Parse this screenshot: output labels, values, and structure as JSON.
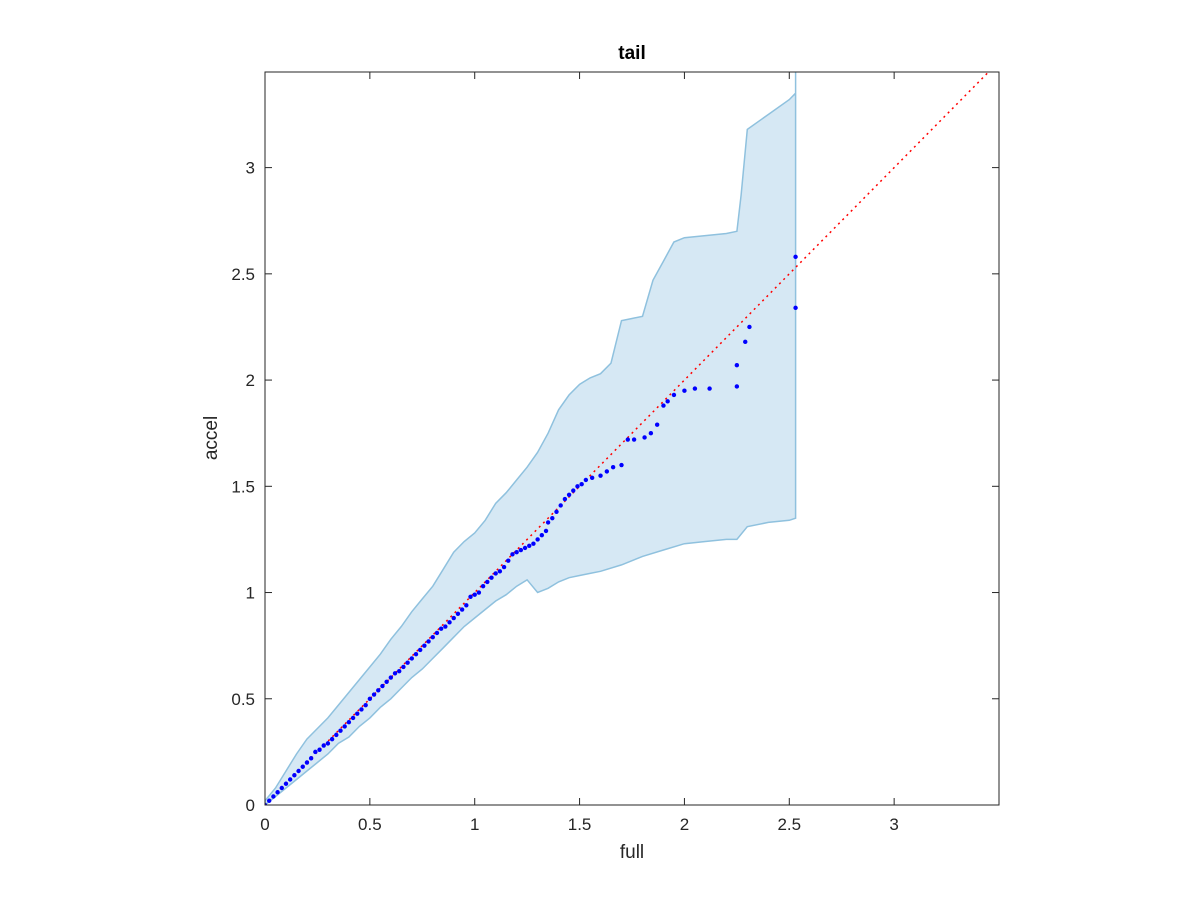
{
  "chart_data": {
    "type": "scatter",
    "title": "tail",
    "xlabel": "full",
    "ylabel": "accel",
    "xlim": [
      0,
      3.5
    ],
    "ylim": [
      0,
      3.45
    ],
    "xticks": [
      0,
      0.5,
      1,
      1.5,
      2,
      2.5,
      3
    ],
    "yticks": [
      0,
      0.5,
      1,
      1.5,
      2,
      2.5,
      3
    ],
    "xtick_labels": [
      "0",
      "0.5",
      "1",
      "1.5",
      "2",
      "2.5",
      "3"
    ],
    "ytick_labels": [
      "0",
      "0.5",
      "1",
      "1.5",
      "2",
      "2.5",
      "3"
    ],
    "grid": false,
    "colors": {
      "points": "#0000ff",
      "reference_line": "#ff0000",
      "band_fill": "#d6e8f4",
      "band_edge": "#8fc1de",
      "axes": "#262626"
    },
    "reference_line": {
      "x": [
        0,
        3.5
      ],
      "y": [
        0,
        3.5
      ],
      "style": "dotted"
    },
    "band": {
      "upper": [
        [
          0,
          0.02
        ],
        [
          0.05,
          0.08
        ],
        [
          0.1,
          0.16
        ],
        [
          0.15,
          0.24
        ],
        [
          0.2,
          0.31
        ],
        [
          0.25,
          0.36
        ],
        [
          0.3,
          0.41
        ],
        [
          0.35,
          0.47
        ],
        [
          0.4,
          0.53
        ],
        [
          0.45,
          0.59
        ],
        [
          0.5,
          0.65
        ],
        [
          0.55,
          0.71
        ],
        [
          0.6,
          0.78
        ],
        [
          0.65,
          0.84
        ],
        [
          0.7,
          0.91
        ],
        [
          0.75,
          0.97
        ],
        [
          0.8,
          1.03
        ],
        [
          0.85,
          1.11
        ],
        [
          0.9,
          1.19
        ],
        [
          0.95,
          1.24
        ],
        [
          1.0,
          1.28
        ],
        [
          1.05,
          1.34
        ],
        [
          1.1,
          1.42
        ],
        [
          1.15,
          1.47
        ],
        [
          1.2,
          1.53
        ],
        [
          1.25,
          1.59
        ],
        [
          1.3,
          1.66
        ],
        [
          1.35,
          1.75
        ],
        [
          1.4,
          1.86
        ],
        [
          1.45,
          1.93
        ],
        [
          1.5,
          1.98
        ],
        [
          1.55,
          2.01
        ],
        [
          1.6,
          2.03
        ],
        [
          1.65,
          2.08
        ],
        [
          1.7,
          2.28
        ],
        [
          1.75,
          2.29
        ],
        [
          1.8,
          2.3
        ],
        [
          1.85,
          2.47
        ],
        [
          1.9,
          2.56
        ],
        [
          1.95,
          2.65
        ],
        [
          2.0,
          2.67
        ],
        [
          2.1,
          2.68
        ],
        [
          2.2,
          2.69
        ],
        [
          2.25,
          2.7
        ],
        [
          2.27,
          2.87
        ],
        [
          2.3,
          3.18
        ],
        [
          2.4,
          3.25
        ],
        [
          2.5,
          3.32
        ],
        [
          2.53,
          3.35
        ],
        [
          2.53,
          3.45
        ]
      ],
      "lower": [
        [
          0,
          0.0
        ],
        [
          0.05,
          0.04
        ],
        [
          0.1,
          0.08
        ],
        [
          0.15,
          0.12
        ],
        [
          0.2,
          0.16
        ],
        [
          0.25,
          0.2
        ],
        [
          0.3,
          0.24
        ],
        [
          0.35,
          0.29
        ],
        [
          0.4,
          0.32
        ],
        [
          0.45,
          0.37
        ],
        [
          0.5,
          0.41
        ],
        [
          0.55,
          0.46
        ],
        [
          0.6,
          0.5
        ],
        [
          0.65,
          0.55
        ],
        [
          0.7,
          0.6
        ],
        [
          0.75,
          0.64
        ],
        [
          0.8,
          0.69
        ],
        [
          0.85,
          0.74
        ],
        [
          0.9,
          0.79
        ],
        [
          0.95,
          0.84
        ],
        [
          1.0,
          0.88
        ],
        [
          1.05,
          0.92
        ],
        [
          1.1,
          0.96
        ],
        [
          1.15,
          0.99
        ],
        [
          1.2,
          1.03
        ],
        [
          1.25,
          1.06
        ],
        [
          1.3,
          1.0
        ],
        [
          1.35,
          1.02
        ],
        [
          1.4,
          1.05
        ],
        [
          1.45,
          1.07
        ],
        [
          1.5,
          1.08
        ],
        [
          1.55,
          1.09
        ],
        [
          1.6,
          1.1
        ],
        [
          1.7,
          1.13
        ],
        [
          1.8,
          1.17
        ],
        [
          1.9,
          1.2
        ],
        [
          2.0,
          1.23
        ],
        [
          2.1,
          1.24
        ],
        [
          2.2,
          1.25
        ],
        [
          2.25,
          1.25
        ],
        [
          2.3,
          1.31
        ],
        [
          2.4,
          1.33
        ],
        [
          2.5,
          1.34
        ],
        [
          2.53,
          1.35
        ],
        [
          2.53,
          1.38
        ]
      ]
    },
    "points": {
      "x": [
        0.0,
        0.02,
        0.04,
        0.06,
        0.08,
        0.1,
        0.12,
        0.14,
        0.16,
        0.18,
        0.2,
        0.22,
        0.24,
        0.26,
        0.28,
        0.3,
        0.32,
        0.34,
        0.36,
        0.38,
        0.4,
        0.42,
        0.44,
        0.46,
        0.48,
        0.5,
        0.52,
        0.54,
        0.56,
        0.58,
        0.6,
        0.62,
        0.64,
        0.66,
        0.68,
        0.7,
        0.72,
        0.74,
        0.76,
        0.78,
        0.8,
        0.82,
        0.84,
        0.86,
        0.88,
        0.9,
        0.92,
        0.94,
        0.96,
        0.98,
        1.0,
        1.02,
        1.04,
        1.06,
        1.08,
        1.1,
        1.12,
        1.14,
        1.16,
        1.18,
        1.2,
        1.22,
        1.24,
        1.26,
        1.28,
        1.3,
        1.32,
        1.34,
        1.35,
        1.37,
        1.39,
        1.41,
        1.43,
        1.45,
        1.47,
        1.49,
        1.51,
        1.53,
        1.56,
        1.6,
        1.63,
        1.66,
        1.7,
        1.73,
        1.76,
        1.81,
        1.84,
        1.87,
        1.9,
        1.92,
        1.95,
        2.0,
        2.05,
        2.12,
        2.25,
        2.25,
        2.29,
        2.31,
        2.53,
        2.53
      ],
      "y": [
        0.0,
        0.02,
        0.04,
        0.06,
        0.08,
        0.1,
        0.12,
        0.14,
        0.16,
        0.18,
        0.2,
        0.22,
        0.25,
        0.26,
        0.28,
        0.29,
        0.31,
        0.33,
        0.35,
        0.37,
        0.39,
        0.41,
        0.43,
        0.45,
        0.47,
        0.5,
        0.52,
        0.54,
        0.56,
        0.58,
        0.6,
        0.62,
        0.63,
        0.65,
        0.67,
        0.69,
        0.71,
        0.73,
        0.75,
        0.77,
        0.79,
        0.81,
        0.83,
        0.84,
        0.86,
        0.88,
        0.9,
        0.92,
        0.94,
        0.98,
        0.99,
        1.0,
        1.03,
        1.05,
        1.07,
        1.09,
        1.1,
        1.12,
        1.15,
        1.18,
        1.19,
        1.2,
        1.21,
        1.22,
        1.23,
        1.25,
        1.27,
        1.29,
        1.33,
        1.35,
        1.38,
        1.41,
        1.44,
        1.46,
        1.48,
        1.5,
        1.51,
        1.53,
        1.54,
        1.55,
        1.57,
        1.59,
        1.6,
        1.72,
        1.72,
        1.73,
        1.75,
        1.79,
        1.88,
        1.9,
        1.93,
        1.95,
        1.96,
        1.96,
        1.97,
        2.07,
        2.18,
        2.25,
        2.58,
        2.34
      ]
    }
  }
}
